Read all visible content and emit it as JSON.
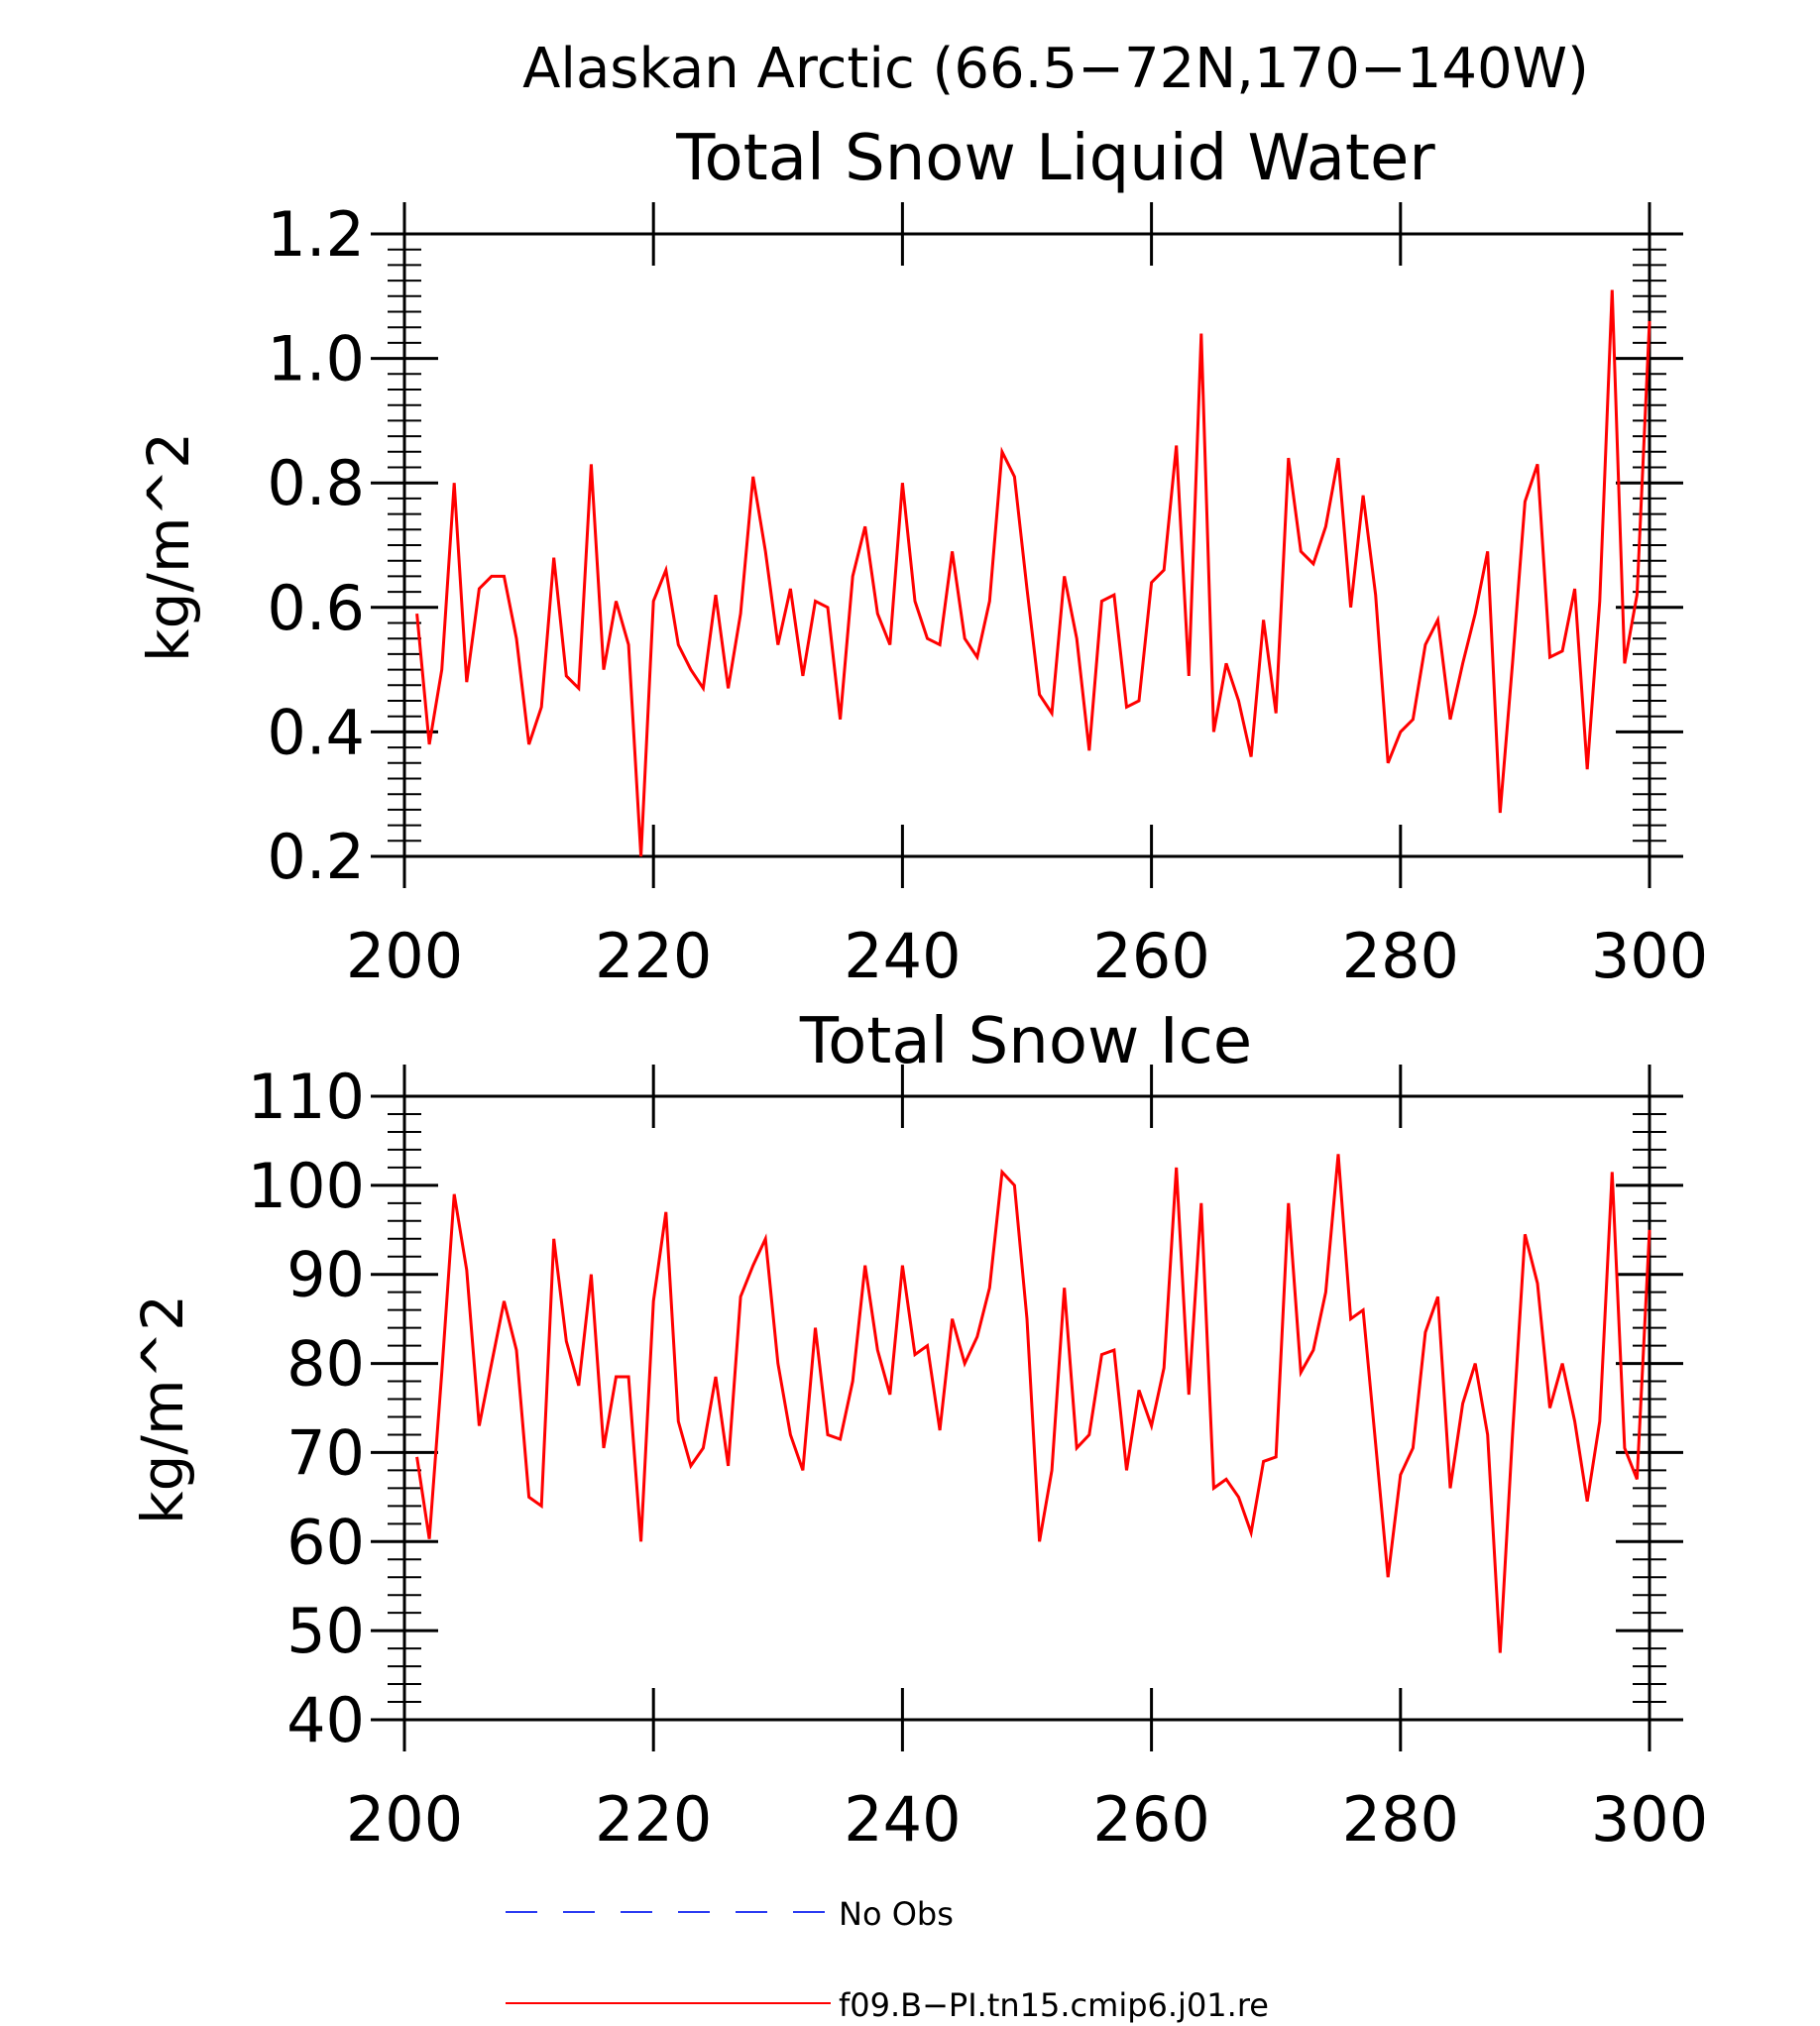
{
  "figure": {
    "title": "Alaskan Arctic (66.5−72N,170−140W)"
  },
  "legend": [
    {
      "label": "No Obs",
      "color": "#2a3bf2",
      "style": "dashed"
    },
    {
      "label": "f09.B−PI.tn15.cmip6.j01.re",
      "color": "#ff0000",
      "style": "solid"
    }
  ],
  "chart_data": [
    {
      "type": "line",
      "title": "Total Snow Liquid Water",
      "xlabel": "",
      "ylabel": "kg/m^2",
      "xlim": [
        200,
        300
      ],
      "ylim": [
        0.2,
        1.2
      ],
      "xticks": [
        "200",
        "220",
        "240",
        "260",
        "280",
        "300"
      ],
      "yticks": [
        "0.2",
        "0.4",
        "0.6",
        "0.8",
        "1.0",
        "1.2"
      ],
      "series": [
        {
          "color": "#ff0000",
          "x": [
            201,
            202,
            203,
            204,
            205,
            206,
            207,
            208,
            209,
            210,
            211,
            212,
            213,
            214,
            215,
            216,
            217,
            218,
            219,
            220,
            221,
            222,
            223,
            224,
            225,
            226,
            227,
            228,
            229,
            230,
            231,
            232,
            233,
            234,
            235,
            236,
            237,
            238,
            239,
            240,
            241,
            242,
            243,
            244,
            245,
            246,
            247,
            248,
            249,
            250,
            251,
            252,
            253,
            254,
            255,
            256,
            257,
            258,
            259,
            260,
            261,
            262,
            263,
            264,
            265,
            266,
            267,
            268,
            269,
            270,
            271,
            272,
            273,
            274,
            275,
            276,
            277,
            278,
            279,
            280,
            281,
            282,
            283,
            284,
            285,
            286,
            287,
            288,
            289,
            290,
            291,
            292,
            293,
            294,
            295,
            296,
            297,
            298,
            299,
            300
          ],
          "y": [
            0.59,
            0.38,
            0.5,
            0.8,
            0.48,
            0.63,
            0.65,
            0.65,
            0.55,
            0.38,
            0.44,
            0.68,
            0.49,
            0.47,
            0.83,
            0.5,
            0.61,
            0.54,
            0.2,
            0.61,
            0.66,
            0.54,
            0.5,
            0.47,
            0.62,
            0.47,
            0.59,
            0.81,
            0.69,
            0.54,
            0.63,
            0.49,
            0.61,
            0.6,
            0.42,
            0.65,
            0.73,
            0.59,
            0.54,
            0.8,
            0.61,
            0.55,
            0.54,
            0.69,
            0.55,
            0.52,
            0.61,
            0.85,
            0.81,
            0.63,
            0.46,
            0.43,
            0.65,
            0.55,
            0.37,
            0.61,
            0.62,
            0.44,
            0.45,
            0.64,
            0.66,
            0.86,
            0.49,
            1.04,
            0.4,
            0.51,
            0.45,
            0.36,
            0.58,
            0.43,
            0.84,
            0.69,
            0.67,
            0.73,
            0.84,
            0.6,
            0.78,
            0.62,
            0.35,
            0.4,
            0.42,
            0.54,
            0.58,
            0.42,
            0.51,
            0.59,
            0.69,
            0.27,
            0.51,
            0.77,
            0.83,
            0.52,
            0.53,
            0.63,
            0.34,
            0.61,
            1.11,
            0.51,
            0.62,
            1.06
          ]
        }
      ]
    },
    {
      "type": "line",
      "title": "Total Snow Ice",
      "xlabel": "",
      "ylabel": "kg/m^2",
      "xlim": [
        200,
        300
      ],
      "ylim": [
        40,
        110
      ],
      "xticks": [
        "200",
        "220",
        "240",
        "260",
        "280",
        "300"
      ],
      "yticks": [
        "40",
        "50",
        "60",
        "70",
        "80",
        "90",
        "100",
        "110"
      ],
      "series": [
        {
          "color": "#ff0000",
          "x": [
            201,
            202,
            203,
            204,
            205,
            206,
            207,
            208,
            209,
            210,
            211,
            212,
            213,
            214,
            215,
            216,
            217,
            218,
            219,
            220,
            221,
            222,
            223,
            224,
            225,
            226,
            227,
            228,
            229,
            230,
            231,
            232,
            233,
            234,
            235,
            236,
            237,
            238,
            239,
            240,
            241,
            242,
            243,
            244,
            245,
            246,
            247,
            248,
            249,
            250,
            251,
            252,
            253,
            254,
            255,
            256,
            257,
            258,
            259,
            260,
            261,
            262,
            263,
            264,
            265,
            266,
            267,
            268,
            269,
            270,
            271,
            272,
            273,
            274,
            275,
            276,
            277,
            278,
            279,
            280,
            281,
            282,
            283,
            284,
            285,
            286,
            287,
            288,
            289,
            290,
            291,
            292,
            293,
            294,
            295,
            296,
            297,
            298,
            299,
            300
          ],
          "y": [
            69.5,
            60.3,
            79,
            99,
            90.5,
            73,
            80,
            87,
            81.5,
            65,
            64,
            94,
            82.5,
            77.5,
            90,
            70.5,
            78.5,
            78.5,
            60,
            87,
            97,
            73.5,
            68.5,
            70.5,
            78.5,
            68.5,
            87.5,
            91,
            94,
            80,
            72,
            68,
            84,
            72,
            71.5,
            78,
            91,
            81.5,
            76.5,
            91,
            81,
            82,
            72.5,
            85,
            80,
            83,
            88.5,
            101.5,
            100,
            85,
            60,
            68,
            88.5,
            70.5,
            72,
            81,
            81.5,
            68,
            77,
            73,
            79.5,
            102,
            76.5,
            98,
            66,
            67,
            65,
            61,
            69,
            69.5,
            98,
            79,
            81.5,
            88,
            103.5,
            85,
            86,
            71,
            56,
            67.5,
            70.5,
            83.5,
            87.5,
            66,
            75.5,
            80,
            72,
            47.5,
            72,
            94.5,
            89,
            75,
            80,
            73.5,
            64.5,
            73.5,
            101.5,
            70.5,
            67,
            95
          ]
        }
      ]
    }
  ]
}
